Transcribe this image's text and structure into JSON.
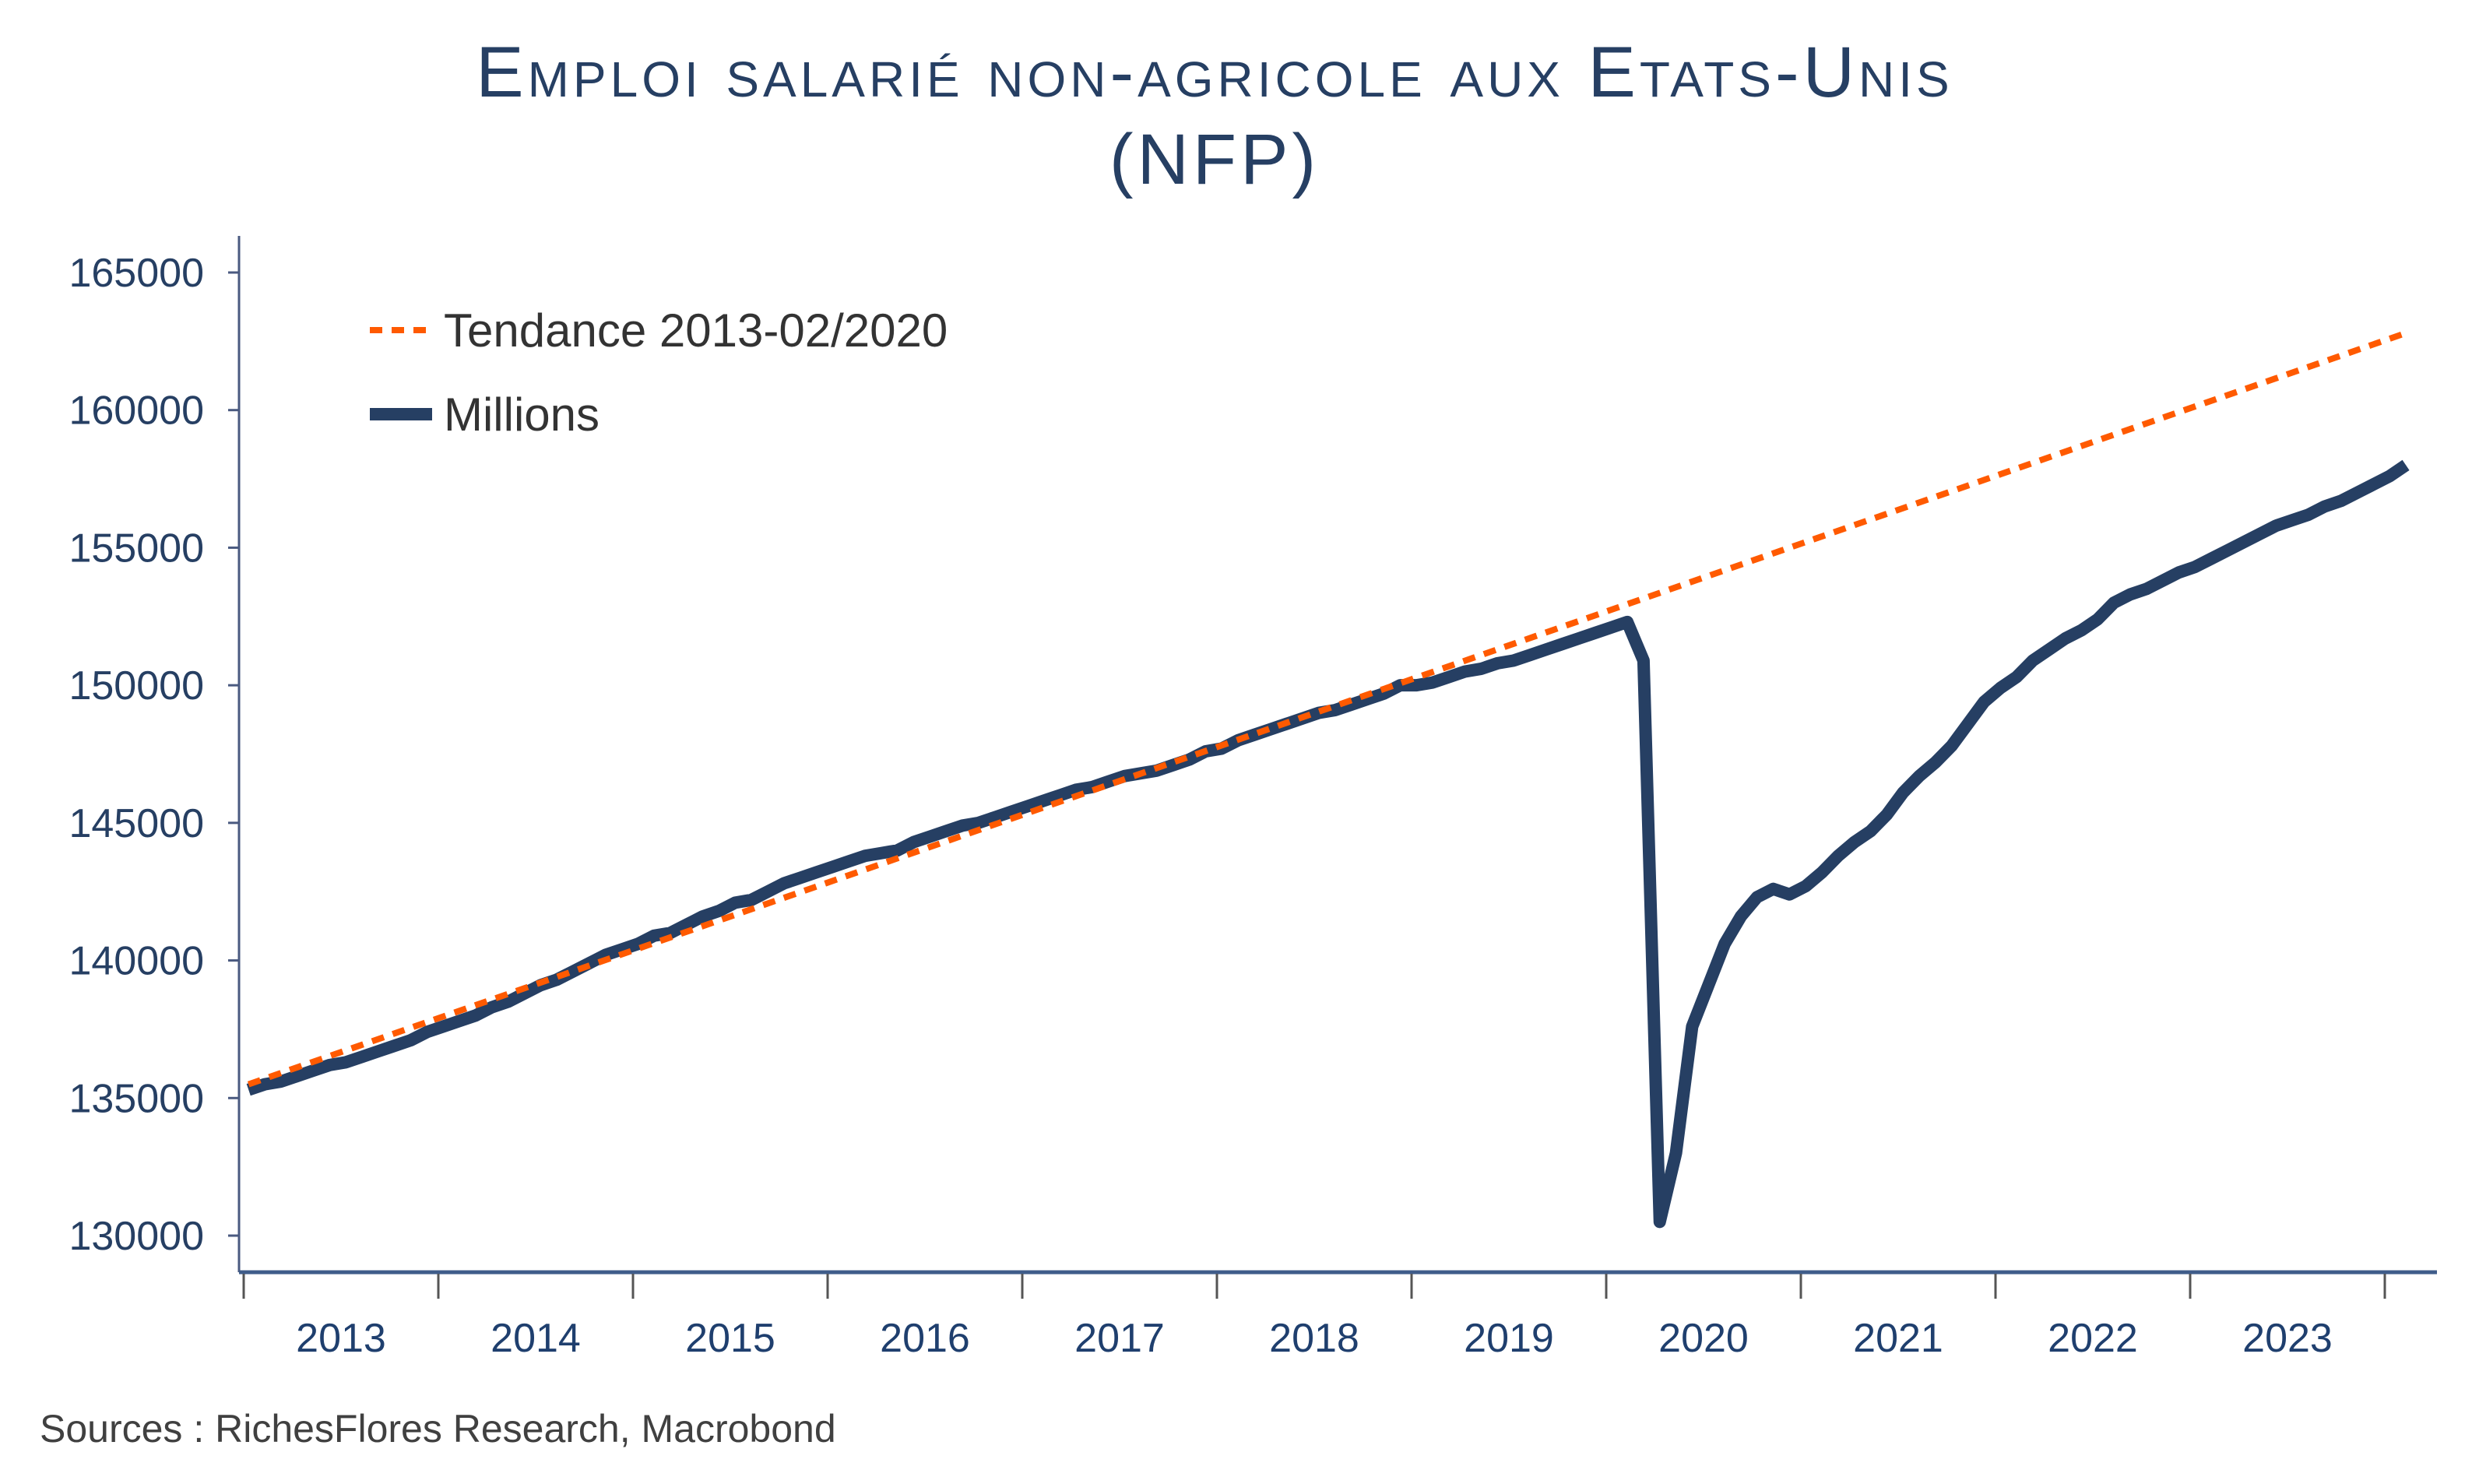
{
  "chart_data": {
    "type": "line",
    "title": "Emploi salarié non-agricole aux Etats-Unis (NFP)",
    "title_lines": [
      "Emploi salarié non-agricole aux Etats-Unis",
      "(NFP)"
    ],
    "xlabel": "",
    "ylabel": "",
    "ylim": [
      128700,
      166100
    ],
    "yticks": [
      130000,
      135000,
      140000,
      145000,
      150000,
      155000,
      160000,
      165000
    ],
    "xticks": [
      "2013",
      "2014",
      "2015",
      "2016",
      "2017",
      "2018",
      "2019",
      "2020",
      "2021",
      "2022",
      "2023"
    ],
    "xlim": [
      "2013-01",
      "2024-03"
    ],
    "grid": false,
    "legend_position": "top-left",
    "source": "Sources : RichesFlores Research, Macrobond",
    "series": [
      {
        "name": "Tendance 2013-02/2020",
        "style": "dashed",
        "color": "#ff5a00",
        "dates": [
          "2013-01",
          "2024-02"
        ],
        "values": [
          135500,
          162800
        ]
      },
      {
        "name": "Millions",
        "style": "solid",
        "color": "#263f63",
        "start": "2013-01",
        "frequency": "monthly",
        "values": [
          135300,
          135500,
          135600,
          135800,
          136000,
          136200,
          136300,
          136500,
          136700,
          136900,
          137100,
          137400,
          137600,
          137800,
          138000,
          138300,
          138500,
          138800,
          139100,
          139300,
          139600,
          139900,
          140200,
          140400,
          140600,
          140900,
          141000,
          141300,
          141600,
          141800,
          142100,
          142200,
          142500,
          142800,
          143000,
          143200,
          143400,
          143600,
          143800,
          143900,
          144000,
          144300,
          144500,
          144700,
          144900,
          145000,
          145200,
          145400,
          145600,
          145800,
          146000,
          146200,
          146300,
          146500,
          146700,
          146800,
          146900,
          147100,
          147300,
          147600,
          147700,
          148000,
          148200,
          148400,
          148600,
          148800,
          149000,
          149100,
          149300,
          149500,
          149700,
          150000,
          150000,
          150100,
          150300,
          150500,
          150600,
          150800,
          150900,
          151100,
          151300,
          151500,
          151700,
          151900,
          152100,
          152300,
          150900,
          130500,
          133000,
          137600,
          139100,
          140600,
          141600,
          142300,
          142600,
          142400,
          142700,
          143200,
          143800,
          144300,
          144700,
          145300,
          146100,
          146700,
          147200,
          147800,
          148600,
          149400,
          149900,
          150300,
          150900,
          151300,
          151700,
          152000,
          152400,
          153000,
          153300,
          153500,
          153800,
          154100,
          154300,
          154600,
          154900,
          155200,
          155500,
          155800,
          156000,
          156200,
          156500,
          156700,
          157000,
          157300,
          157600,
          158000
        ]
      }
    ]
  }
}
